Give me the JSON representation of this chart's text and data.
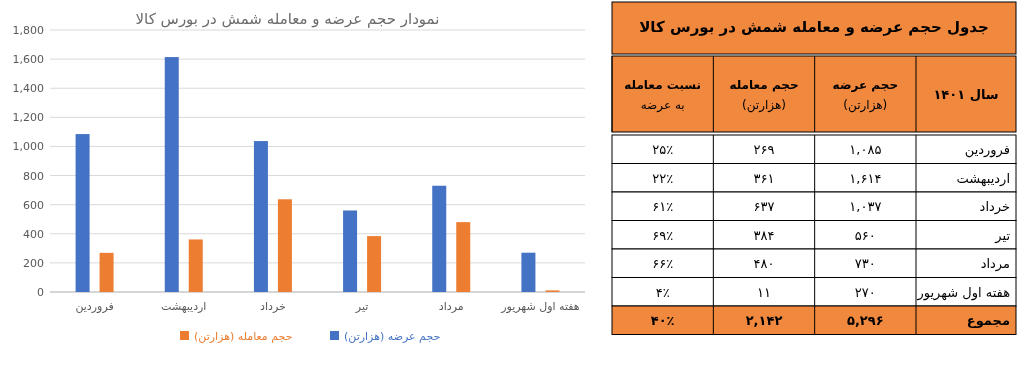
{
  "chart_data": [
    {
      "type": "bar",
      "title": "نمودار حجم عرضه و معامله شمش در بورس کالا",
      "categories": [
        "فروردین",
        "اردیبهشت",
        "خرداد",
        "تیر",
        "مرداد",
        "هفته اول شهریور"
      ],
      "series": [
        {
          "name": "حجم عرضه (هزارتن)",
          "color": "#4472c4",
          "values": [
            1085,
            1614,
            1037,
            560,
            730,
            270
          ]
        },
        {
          "name": "حجم معامله (هزارتن)",
          "color": "#ed7d31",
          "values": [
            269,
            361,
            637,
            384,
            480,
            11
          ]
        }
      ],
      "ylim": [
        0,
        1800
      ],
      "yticks": [
        0,
        200,
        400,
        600,
        800,
        {
          "value": 1000,
          "label": "1,000"
        },
        {
          "value": 1200,
          "label": "1,200"
        },
        {
          "value": 1400,
          "label": "1,400"
        },
        {
          "value": 1600,
          "label": "1,600"
        },
        {
          "value": 1800,
          "label": "1,800"
        }
      ],
      "grid": "y",
      "legend": "bottom"
    },
    {
      "type": "heatmap",
      "title": "جدول حجم عرضه و معامله شمش در بورس کالا",
      "ylabel": "سال ۱۴۰۱",
      "categories": [
        "نسبت معامله به عرضه",
        "حجم معامله (هزارتن)",
        "حجم عرضه (هزارتن)"
      ],
      "y_categories": [
        "فروردین",
        "اردیبهشت",
        "خرداد",
        "تیر",
        "مرداد",
        "هفته اول شهریور",
        "مجموع"
      ],
      "cells": [
        [
          25,
          269,
          1085
        ],
        [
          22,
          361,
          1614
        ],
        [
          61,
          637,
          1037
        ],
        [
          69,
          384,
          560
        ],
        [
          66,
          480,
          730
        ],
        [
          4,
          11,
          270
        ],
        [
          40,
          2142,
          5296
        ]
      ],
      "cell_labels": [
        [
          "۲۵٪",
          "۲۶۹",
          "۱,۰۸۵"
        ],
        [
          "۲۲٪",
          "۳۶۱",
          "۱,۶۱۴"
        ],
        [
          "۶۱٪",
          "۶۳۷",
          "۱,۰۳۷"
        ],
        [
          "۶۹٪",
          "۳۸۴",
          "۵۶۰"
        ],
        [
          "۶۶٪",
          "۴۸۰",
          "۷۳۰"
        ],
        [
          "۴٪",
          "۱۱",
          "۲۷۰"
        ],
        [
          "۴۰٪",
          "۲,۱۴۲",
          "۵,۲۹۶"
        ]
      ]
    }
  ]
}
